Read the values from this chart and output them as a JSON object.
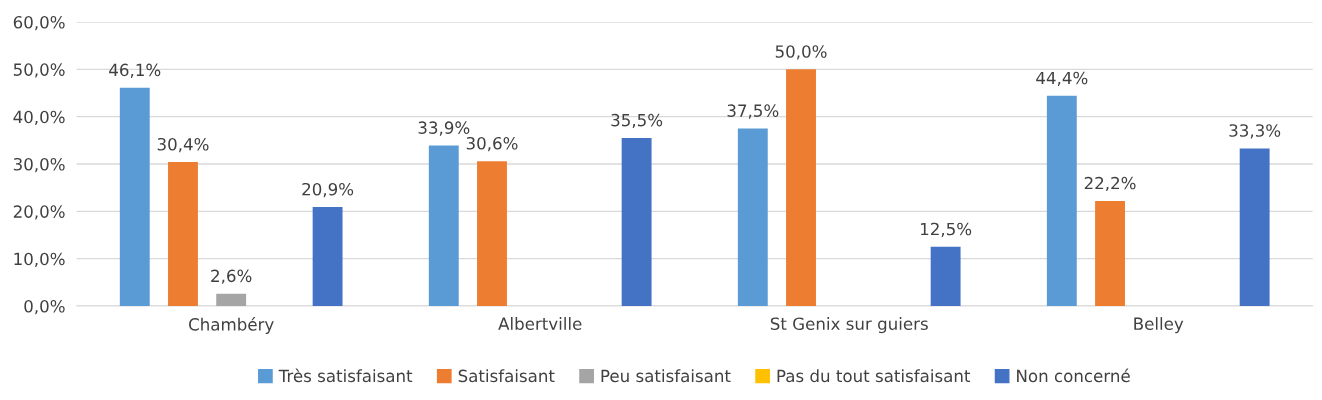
{
  "chart_data": {
    "type": "bar",
    "categories": [
      "Chambéry",
      "Albertville",
      "St Genix sur guiers",
      "Belley"
    ],
    "series": [
      {
        "name": "Très satisfaisant",
        "color": "#5b9bd5",
        "values": [
          46.1,
          33.9,
          37.5,
          44.4
        ],
        "value_labels": [
          "46,1%",
          "33,9%",
          "37,5%",
          "44,4%"
        ]
      },
      {
        "name": "Satisfaisant",
        "color": "#ed7d31",
        "values": [
          30.4,
          30.6,
          50.0,
          22.2
        ],
        "value_labels": [
          "30,4%",
          "30,6%",
          "50,0%",
          "22,2%"
        ]
      },
      {
        "name": "Peu satisfaisant",
        "color": "#a5a5a5",
        "values": [
          2.6,
          null,
          null,
          null
        ],
        "value_labels": [
          "2,6%",
          null,
          null,
          null
        ]
      },
      {
        "name": "Pas du tout satisfaisant",
        "color": "#ffc000",
        "values": [
          null,
          null,
          null,
          null
        ],
        "value_labels": [
          null,
          null,
          null,
          null
        ]
      },
      {
        "name": "Non concerné",
        "color": "#4472c4",
        "values": [
          20.9,
          35.5,
          12.5,
          33.3
        ],
        "value_labels": [
          "20,9%",
          "35,5%",
          "12,5%",
          "33,3%"
        ]
      }
    ],
    "ylim": [
      0,
      60
    ],
    "yticks": [
      {
        "value": 0,
        "label": "0,0%"
      },
      {
        "value": 10,
        "label": "10,0%"
      },
      {
        "value": 20,
        "label": "20,0%"
      },
      {
        "value": 30,
        "label": "30,0%"
      },
      {
        "value": 40,
        "label": "40,0%"
      },
      {
        "value": 50,
        "label": "50,0%"
      },
      {
        "value": 60,
        "label": "60,0%"
      }
    ],
    "grid": "y",
    "legend": "bottom"
  }
}
